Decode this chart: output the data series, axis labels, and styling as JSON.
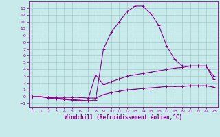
{
  "xlabel": "Windchill (Refroidissement éolien,°C)",
  "xlim": [
    -0.5,
    23.5
  ],
  "ylim": [
    -1.5,
    14.0
  ],
  "xticks": [
    0,
    1,
    2,
    3,
    4,
    5,
    6,
    7,
    8,
    9,
    10,
    11,
    12,
    13,
    14,
    15,
    16,
    17,
    18,
    19,
    20,
    21,
    22,
    23
  ],
  "yticks": [
    -1,
    0,
    1,
    2,
    3,
    4,
    5,
    6,
    7,
    8,
    9,
    10,
    11,
    12,
    13
  ],
  "background_color": "#c8eaea",
  "line_color": "#880088",
  "grid_color": "#a0cccc",
  "curve1_x": [
    0,
    1,
    2,
    3,
    4,
    5,
    6,
    7,
    8,
    9,
    10,
    11,
    12,
    13,
    14,
    15,
    16,
    17,
    18,
    19,
    20,
    21,
    22,
    23
  ],
  "curve1_y": [
    0.0,
    0.0,
    -0.2,
    -0.3,
    -0.4,
    -0.5,
    -0.6,
    -0.6,
    -0.5,
    7.0,
    9.5,
    11.0,
    12.5,
    13.3,
    13.3,
    12.2,
    10.5,
    7.5,
    5.5,
    4.5,
    4.5,
    4.5,
    4.5,
    3.0
  ],
  "curve2_x": [
    0,
    1,
    2,
    3,
    4,
    5,
    6,
    7,
    8,
    9,
    10,
    11,
    12,
    13,
    14,
    15,
    16,
    17,
    18,
    19,
    20,
    21,
    22,
    23
  ],
  "curve2_y": [
    0.0,
    0.0,
    -0.1,
    -0.2,
    -0.3,
    -0.4,
    -0.5,
    -0.6,
    3.2,
    1.8,
    2.2,
    2.6,
    3.0,
    3.2,
    3.4,
    3.6,
    3.8,
    4.0,
    4.2,
    4.3,
    4.5,
    4.5,
    4.5,
    2.5
  ],
  "curve3_x": [
    0,
    1,
    2,
    3,
    4,
    5,
    6,
    7,
    8,
    9,
    10,
    11,
    12,
    13,
    14,
    15,
    16,
    17,
    18,
    19,
    20,
    21,
    22,
    23
  ],
  "curve3_y": [
    0.0,
    0.0,
    -0.1,
    -0.1,
    -0.1,
    -0.1,
    -0.1,
    -0.2,
    -0.2,
    0.3,
    0.6,
    0.8,
    1.0,
    1.1,
    1.2,
    1.3,
    1.4,
    1.5,
    1.5,
    1.5,
    1.6,
    1.6,
    1.6,
    1.4
  ],
  "xlabel_fontsize": 5.5,
  "tick_fontsize": 4.5
}
